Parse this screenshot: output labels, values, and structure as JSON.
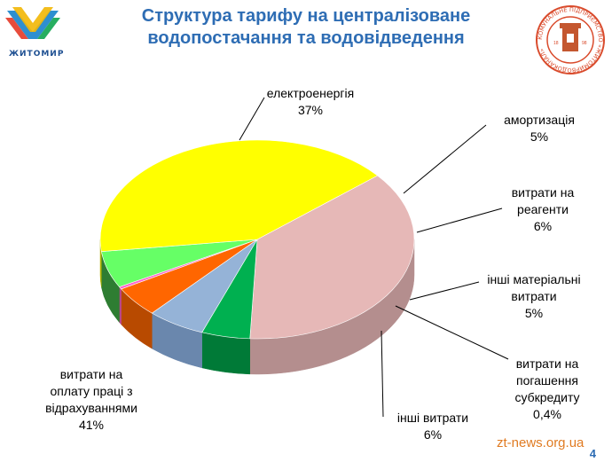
{
  "header": {
    "title_line1": "Структура тарифу на централізоване",
    "title_line2": "водопостачання та водовідведення",
    "city_logo_text": "ЖИТОМИР",
    "company_logo_text": "КОМУНАЛЬНЕ ПІДПРИЄМСТВО «ЖИТОМИРВОДОКАНАЛ»",
    "company_logo_years": [
      "18",
      "98"
    ]
  },
  "footer": {
    "watermark": "zt-news.org.ua",
    "slide_number": "4"
  },
  "chart_data": {
    "type": "pie",
    "three_d": true,
    "slices": [
      {
        "label_lines": [
          "електроенергія"
        ],
        "value_label": "37%",
        "value": 37,
        "color": "#e6b8b7",
        "side_color": "#b48e8e"
      },
      {
        "label_lines": [
          "амортизація"
        ],
        "value_label": "5%",
        "value": 5,
        "color": "#00b050",
        "side_color": "#007a37"
      },
      {
        "label_lines": [
          "витрати на",
          "реагенти"
        ],
        "value_label": "6%",
        "value": 6,
        "color": "#95b3d7",
        "side_color": "#6a87ad"
      },
      {
        "label_lines": [
          "інші матеріальні",
          "витрати"
        ],
        "value_label": "5%",
        "value": 5,
        "color": "#ff6600",
        "side_color": "#b84a00"
      },
      {
        "label_lines": [
          "витрати на",
          "погашення",
          "субкредиту"
        ],
        "value_label": "0,4%",
        "value": 0.4,
        "color": "#ff66cc",
        "side_color": "#b8468f"
      },
      {
        "label_lines": [
          "інші витрати"
        ],
        "value_label": "6%",
        "value": 6,
        "color": "#66ff66",
        "side_color": "#2e7d32"
      },
      {
        "label_lines": [
          "витрати на",
          "оплату праці з",
          "відрахуваннями"
        ],
        "value_label": "41%",
        "value": 41,
        "color": "#ffff00",
        "side_color": "#b3b300"
      }
    ]
  }
}
